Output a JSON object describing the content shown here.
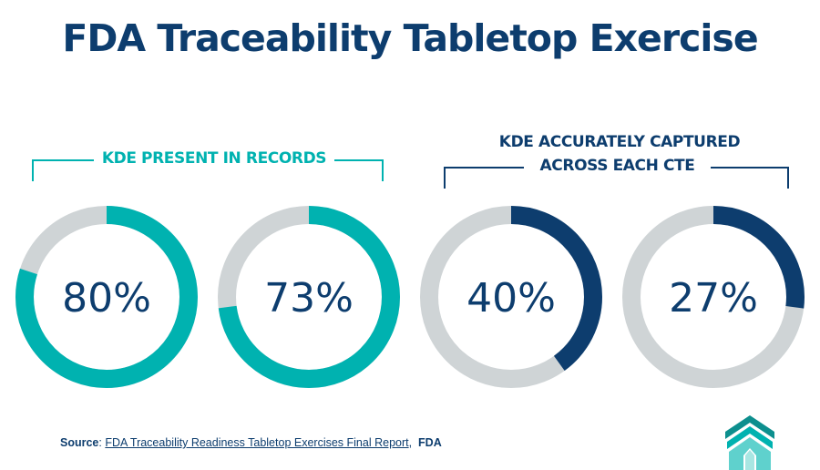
{
  "title": "FDA Traceability Tabletop Exercise",
  "groups": {
    "left": {
      "label": "KDE PRESENT IN RECORDS",
      "color": "#00b2b0"
    },
    "right": {
      "label_line1": "KDE ACCURATELY CAPTURED",
      "label_line2": "ACROSS EACH CTE",
      "color": "#0d3d6e"
    }
  },
  "colors": {
    "track": "#cfd4d6",
    "teal": "#00b2b0",
    "navy": "#0d3d6e"
  },
  "chart_data": [
    {
      "type": "pie",
      "group": "KDE PRESENT IN RECORDS",
      "values": [
        80
      ],
      "labels": [
        "80%"
      ],
      "color": "#00b2b0"
    },
    {
      "type": "pie",
      "group": "KDE PRESENT IN RECORDS",
      "values": [
        73
      ],
      "labels": [
        "73%"
      ],
      "color": "#00b2b0"
    },
    {
      "type": "pie",
      "group": "KDE ACCURATELY CAPTURED ACROSS EACH CTE",
      "values": [
        40
      ],
      "labels": [
        "40%"
      ],
      "color": "#0d3d6e"
    },
    {
      "type": "pie",
      "group": "KDE ACCURATELY CAPTURED ACROSS EACH CTE",
      "values": [
        27
      ],
      "labels": [
        "27%"
      ],
      "color": "#0d3d6e"
    }
  ],
  "source": {
    "prefix": "Source",
    "link_text": "FDA Traceability Readiness Tabletop Exercises Final Report",
    "org": "FDA"
  }
}
